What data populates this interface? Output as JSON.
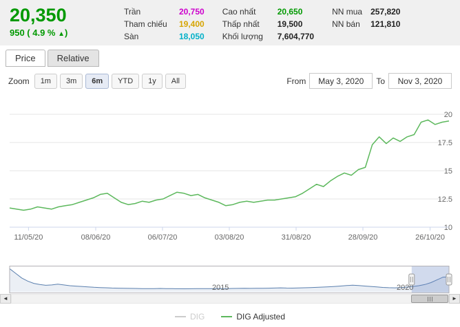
{
  "colors": {
    "up": "#009900",
    "ceiling": "#cc00cc",
    "reference": "#d6a400",
    "floor": "#00b0c8",
    "series": "#5cb85c",
    "navigator": "#5a7fae",
    "selected_button": "#e6ebf5",
    "disabled_legend": "#cccccc"
  },
  "header": {
    "price": "20,350",
    "change_text": "950 ( 4.9 %",
    "arrow": "▲",
    "change_close": ")",
    "stats_left": [
      {
        "label": "Trần",
        "value": "20,750"
      },
      {
        "label": "Tham chiếu",
        "value": "19,400"
      },
      {
        "label": "Sàn",
        "value": "18,050"
      }
    ],
    "stats_mid": [
      {
        "label": "Cao nhất",
        "value": "20,650"
      },
      {
        "label": "Thấp nhất",
        "value": "19,500"
      },
      {
        "label": "Khối lượng",
        "value": "7,604,770"
      }
    ],
    "stats_right": [
      {
        "label": "NN mua",
        "value": "257,820"
      },
      {
        "label": "NN bán",
        "value": "121,810"
      }
    ]
  },
  "tabs": [
    {
      "label": "Price",
      "active": true
    },
    {
      "label": "Relative",
      "active": false
    }
  ],
  "toolbar": {
    "zoom_label": "Zoom",
    "buttons": [
      {
        "label": "1m",
        "selected": false
      },
      {
        "label": "3m",
        "selected": false
      },
      {
        "label": "6m",
        "selected": true
      },
      {
        "label": "YTD",
        "selected": false
      },
      {
        "label": "1y",
        "selected": false
      },
      {
        "label": "All",
        "selected": false
      }
    ],
    "from_label": "From",
    "from_value": "May 3, 2020",
    "to_label": "To",
    "to_value": "Nov 3, 2020"
  },
  "chart_data": [
    {
      "type": "line",
      "title": "",
      "xlabel": "",
      "ylabel": "",
      "ylim": [
        10,
        20
      ],
      "y_ticks": [
        10,
        12.5,
        15,
        17.5,
        20
      ],
      "grid": true,
      "legend_position": "bottom",
      "x_ticks": [
        {
          "label": "11/05/20",
          "f": 0.043
        },
        {
          "label": "08/06/20",
          "f": 0.196
        },
        {
          "label": "06/07/20",
          "f": 0.348
        },
        {
          "label": "03/08/20",
          "f": 0.5
        },
        {
          "label": "31/08/20",
          "f": 0.652
        },
        {
          "label": "28/09/20",
          "f": 0.804
        },
        {
          "label": "26/10/20",
          "f": 0.957
        }
      ],
      "series": [
        {
          "name": "DIG Adjusted",
          "color": "#5cb85c",
          "values": [
            11.7,
            11.6,
            11.5,
            11.6,
            11.8,
            11.7,
            11.6,
            11.8,
            11.9,
            12.0,
            12.2,
            12.4,
            12.6,
            12.9,
            13.0,
            12.6,
            12.2,
            12.0,
            12.1,
            12.3,
            12.2,
            12.4,
            12.5,
            12.8,
            13.1,
            13.0,
            12.8,
            12.9,
            12.6,
            12.4,
            12.2,
            11.9,
            12.0,
            12.2,
            12.3,
            12.2,
            12.3,
            12.4,
            12.4,
            12.5,
            12.6,
            12.7,
            13.0,
            13.4,
            13.8,
            13.6,
            14.1,
            14.5,
            14.8,
            14.6,
            15.1,
            15.3,
            17.3,
            18.0,
            17.4,
            17.9,
            17.6,
            18.0,
            18.2,
            19.3,
            19.5,
            19.1,
            19.3,
            19.4
          ]
        }
      ]
    },
    {
      "type": "area",
      "name": "navigator-history",
      "color": "#5a7fae",
      "fill": "rgba(90,127,174,0.12)",
      "ylim": [
        0,
        32
      ],
      "values": [
        30,
        24,
        18,
        14,
        11,
        9.5,
        8.5,
        9,
        10,
        9,
        8,
        7.5,
        7,
        6.5,
        6,
        5.6,
        5.3,
        5,
        4.8,
        4.6,
        4.5,
        4.4,
        4.3,
        4.2,
        4.3,
        4.4,
        4.3,
        4.2,
        4.1,
        4,
        4.1,
        4.2,
        4.3,
        4.2,
        4.3,
        4.4,
        4.3,
        4.4,
        4.5,
        4.6,
        4.5,
        4.6,
        4.7,
        4.8,
        5,
        5.2,
        5,
        4.9,
        5.1,
        5.3,
        5.6,
        5.9,
        6.2,
        6.6,
        7,
        7.6,
        8.2,
        8.6,
        8.2,
        7.6,
        7,
        6.4,
        5.8,
        5.4,
        5.2,
        5.6,
        6.2,
        7,
        8,
        9.5,
        12,
        15.5,
        19,
        19.5
      ],
      "x_labels": [
        {
          "label": "2015",
          "f": 0.48
        },
        {
          "label": "2020",
          "f": 0.9
        }
      ],
      "selection": {
        "start": 0.915,
        "end": 1.0
      },
      "selection_fill": "rgba(102,133,194,0.3)"
    }
  ],
  "scrollbar": {
    "thumb_start": 0.915,
    "thumb_end": 1.0,
    "left_arrow": "◄",
    "right_arrow": "►"
  },
  "legend": [
    {
      "name": "DIG",
      "color": "#cccccc",
      "hidden": true
    },
    {
      "name": "DIG Adjusted",
      "color": "#5cb85c",
      "hidden": false
    }
  ]
}
